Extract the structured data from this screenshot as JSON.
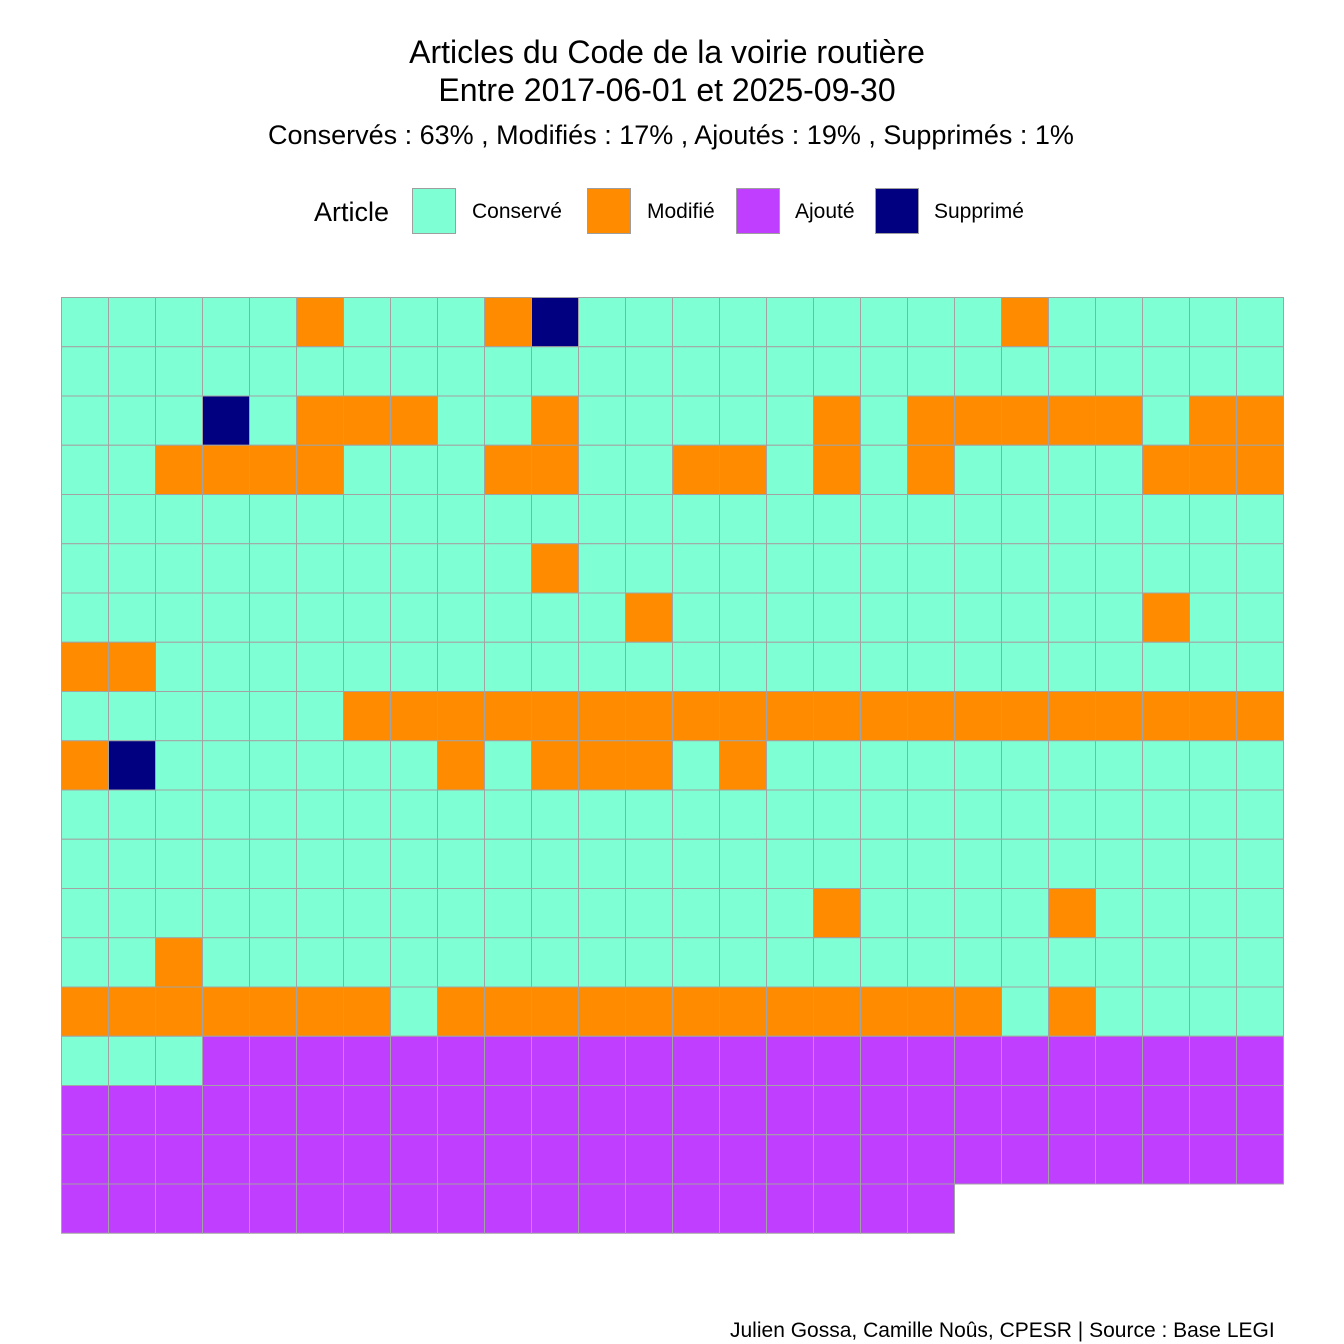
{
  "title_line1": "Articles du Code de la voirie routière",
  "title_line2": "Entre 2017-06-01 et 2025-09-30",
  "subtitle": "Conservés :  63% , Modifiés :  17% , Ajoutés :  19% , Supprimés :  1%",
  "caption": "Julien Gossa, Camille Noûs, CPESR  |  Source : Base LEGI",
  "legend": {
    "title": "Article",
    "items": [
      {
        "label": "Conservé",
        "color": "#7fffd4"
      },
      {
        "label": "Modifié",
        "color": "#ff8c00"
      },
      {
        "label": "Ajouté",
        "color": "#bf3eff"
      },
      {
        "label": "Supprimé",
        "color": "#000080"
      }
    ]
  },
  "chart_data": {
    "type": "heatmap",
    "title": "Articles du Code de la voirie routière\nEntre 2017-06-01 et 2025-09-30",
    "subtitle": "Conservés :  63% , Modifiés :  17% , Ajoutés :  19% , Supprimés :  1%",
    "columns": 26,
    "codes": {
      "C": "Conservé",
      "M": "Modifié",
      "A": "Ajouté",
      "S": "Supprimé"
    },
    "colors": {
      "C": "#7fffd4",
      "M": "#ff8c00",
      "A": "#bf3eff",
      "S": "#000080"
    },
    "rows": [
      "CCCCCMCCCMSCCCCCCCCCMCCCCC",
      "CCCCCCCCCCCCCCCCCCCCCCCCCC",
      "CCCSCMMMCCMCCCCCMCMMMMMCMM",
      "CCMMMMCCCMMCCMMCMCMCCCCMMM",
      "CCCCCCCCCCCCCCCCCCCCCCCCCC",
      "CCCCCCCCCCMCCCCCCCCCCCCCCC",
      "CCCCCCCCCCCCMCCCCCCCCCCMCC",
      "MMCCCCCCCCCCCCCCCCCCCCCCCC",
      "CCCCCCMMMMMMMMMMMMMMMMMMMM",
      "MSCCCCCCMCMMMCMCCCCCCCCCCC",
      "CCCCCCCCCCCCCCCCCCCCCCCCCC",
      "CCCCCCCCCCCCCCCCCCCCCCCCCC",
      "CCCCCCCCCCCCCCCCMCCCCMCCCC",
      "CCMCCCCCCCCCCCCCCCCCCCCCCC",
      "MMMMMMMCMMMMMMMMMMMMCMCCCC",
      "CCCAAAAAAAAAAAAAAAAAAAAAAA",
      "AAAAAAAAAAAAAAAAAAAAAAAAAA",
      "AAAAAAAAAAAAAAAAAAAAAAAAAA",
      "AAAAAAAAAAAAAAAAAAA"
    ]
  }
}
